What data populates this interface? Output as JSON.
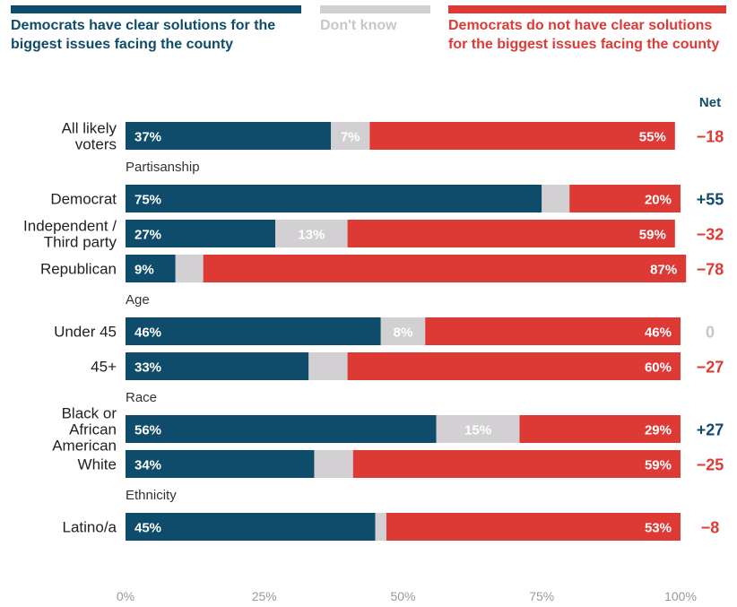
{
  "legend": [
    {
      "label": "Democrats have clear solutions for the biggest issues facing the county",
      "color": "#0f4c6b"
    },
    {
      "label": "Don't know",
      "color": "#d3d0d3"
    },
    {
      "label": "Democrats do not have clear solutions for the biggest issues facing the county",
      "color": "#dd3a36"
    }
  ],
  "net_header": "Net",
  "chart_data": {
    "type": "bar",
    "orientation": "horizontal",
    "stacked": true,
    "xlim": [
      0,
      100
    ],
    "x_ticks": [
      "0%",
      "25%",
      "50%",
      "75%",
      "100%"
    ],
    "series": [
      {
        "name": "Democrats have clear solutions for the biggest issues facing the county",
        "color": "#0f4c6b"
      },
      {
        "name": "Don't know",
        "color": "#d3d0d3"
      },
      {
        "name": "Democrats do not have clear solutions for the biggest issues facing the county",
        "color": "#dd3a36"
      }
    ],
    "groups": [
      {
        "label": "",
        "rows": [
          {
            "category": "All likely voters",
            "values": [
              37,
              7,
              55
            ],
            "labels": [
              "37%",
              "7%",
              "55%"
            ],
            "net": "−18"
          }
        ]
      },
      {
        "label": "Partisanship",
        "rows": [
          {
            "category": "Democrat",
            "values": [
              75,
              5,
              20
            ],
            "labels": [
              "75%",
              "",
              "20%"
            ],
            "net": "+55"
          },
          {
            "category": "Independent / Third party",
            "values": [
              27,
              13,
              59
            ],
            "labels": [
              "27%",
              "13%",
              "59%"
            ],
            "net": "−32"
          },
          {
            "category": "Republican",
            "values": [
              9,
              5,
              87
            ],
            "labels": [
              "9%",
              "",
              "87%"
            ],
            "net": "−78"
          }
        ]
      },
      {
        "label": "Age",
        "rows": [
          {
            "category": "Under 45",
            "values": [
              46,
              8,
              46
            ],
            "labels": [
              "46%",
              "8%",
              "46%"
            ],
            "net": "0"
          },
          {
            "category": "45+",
            "values": [
              33,
              7,
              60
            ],
            "labels": [
              "33%",
              "",
              "60%"
            ],
            "net": "−27"
          }
        ]
      },
      {
        "label": "Race",
        "rows": [
          {
            "category": "Black or African American",
            "values": [
              56,
              15,
              29
            ],
            "labels": [
              "56%",
              "15%",
              "29%"
            ],
            "net": "+27"
          },
          {
            "category": "White",
            "values": [
              34,
              7,
              59
            ],
            "labels": [
              "34%",
              "",
              "59%"
            ],
            "net": "−25"
          }
        ]
      },
      {
        "label": "Ethnicity",
        "rows": [
          {
            "category": "Latino/a",
            "values": [
              45,
              2,
              53
            ],
            "labels": [
              "45%",
              "",
              "53%"
            ],
            "net": "−8"
          }
        ]
      }
    ]
  }
}
